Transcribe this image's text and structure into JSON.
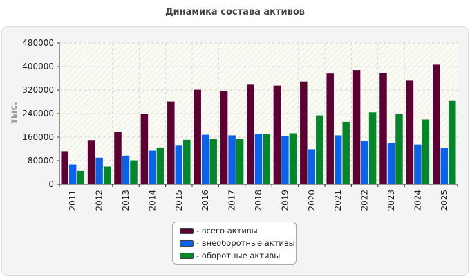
{
  "chart_data": {
    "type": "bar",
    "title": "Динамика состава активов",
    "ylabel": "тыс.",
    "xlabel": "",
    "ylim": [
      0,
      480000
    ],
    "yticks": [
      0,
      80000,
      160000,
      240000,
      320000,
      400000,
      480000
    ],
    "grid": true,
    "legend_position": "bottom-center",
    "categories": [
      "2011",
      "2012",
      "2013",
      "2014",
      "2015",
      "2016",
      "2017",
      "2018",
      "2019",
      "2020",
      "2021",
      "2022",
      "2023",
      "2024",
      "2025"
    ],
    "series": [
      {
        "name": "- всего активы",
        "color": "#5c0033",
        "values": [
          112000,
          150000,
          177000,
          239000,
          281000,
          321000,
          317000,
          338000,
          335000,
          349000,
          376000,
          388000,
          378000,
          352000,
          406000
        ]
      },
      {
        "name": "- внеоборотные активы",
        "color": "#0b63ea",
        "values": [
          67000,
          90000,
          97000,
          114000,
          131000,
          168000,
          166000,
          170000,
          163000,
          119000,
          166000,
          147000,
          140000,
          135000,
          124000
        ]
      },
      {
        "name": "- оборотные активы",
        "color": "#05862a",
        "values": [
          45000,
          60000,
          81000,
          125000,
          151000,
          155000,
          154000,
          170000,
          173000,
          234000,
          212000,
          244000,
          239000,
          220000,
          283000
        ]
      }
    ]
  }
}
